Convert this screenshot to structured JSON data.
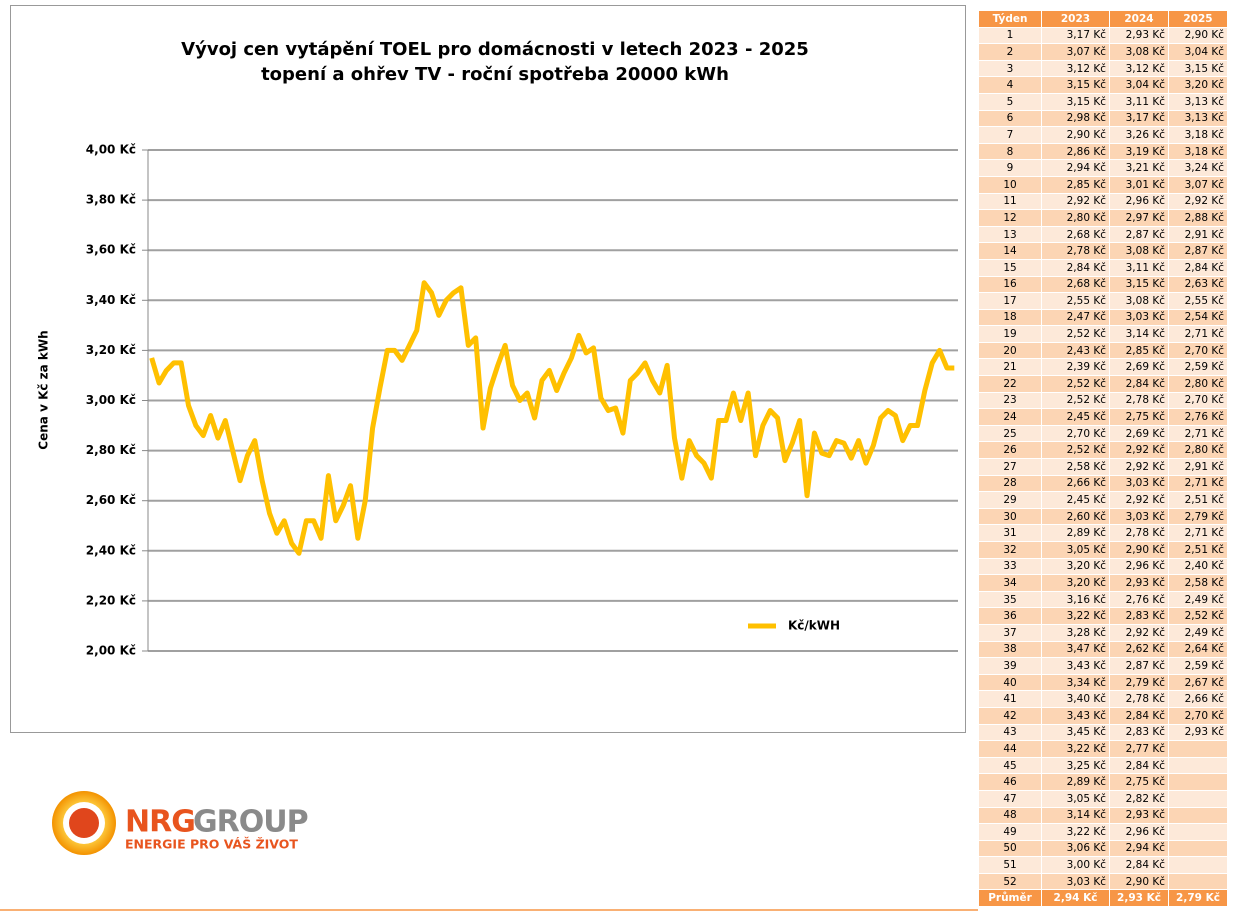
{
  "chart_data": {
    "type": "line",
    "title": "Vývoj cen vytápění TOEL pro domácnosti v letech 2023 - 2025",
    "subtitle": "topení a ohřev TV - roční spotřeba 20000 kWh",
    "y_label": "Cena v Kč za kWh",
    "ylim": [
      2.0,
      4.0
    ],
    "yticks": [
      {
        "value": 2.0,
        "label": "2,00 Kč"
      },
      {
        "value": 2.2,
        "label": "2,20 Kč"
      },
      {
        "value": 2.4,
        "label": "2,40 Kč"
      },
      {
        "value": 2.6,
        "label": "2,60 Kč"
      },
      {
        "value": 2.8,
        "label": "2,80 Kč"
      },
      {
        "value": 3.0,
        "label": "3,00 Kč"
      },
      {
        "value": 3.2,
        "label": "3,20 Kč"
      },
      {
        "value": 3.4,
        "label": "3,40 Kč"
      },
      {
        "value": 3.6,
        "label": "3,60 Kč"
      },
      {
        "value": 3.8,
        "label": "3,80 Kč"
      },
      {
        "value": 4.0,
        "label": "4,00 Kč"
      }
    ],
    "grid": true,
    "legend": "right",
    "series": [
      {
        "name": "Kč/kWH",
        "color": "#ffc000",
        "values": [
          3.17,
          3.07,
          3.12,
          3.15,
          3.15,
          2.98,
          2.9,
          2.86,
          2.94,
          2.85,
          2.92,
          2.8,
          2.68,
          2.78,
          2.84,
          2.68,
          2.55,
          2.47,
          2.52,
          2.43,
          2.39,
          2.52,
          2.52,
          2.45,
          2.7,
          2.52,
          2.58,
          2.66,
          2.45,
          2.6,
          2.89,
          3.05,
          3.2,
          3.2,
          3.16,
          3.22,
          3.28,
          3.47,
          3.43,
          3.34,
          3.4,
          3.43,
          3.45,
          3.22,
          3.25,
          2.89,
          3.05,
          3.14,
          3.22,
          3.06,
          3.0,
          3.03,
          2.93,
          3.08,
          3.12,
          3.04,
          3.11,
          3.17,
          3.26,
          3.19,
          3.21,
          3.01,
          2.96,
          2.97,
          2.87,
          3.08,
          3.11,
          3.15,
          3.08,
          3.03,
          3.14,
          2.85,
          2.69,
          2.84,
          2.78,
          2.75,
          2.69,
          2.92,
          2.92,
          3.03,
          2.92,
          3.03,
          2.78,
          2.9,
          2.96,
          2.93,
          2.76,
          2.83,
          2.92,
          2.62,
          2.87,
          2.79,
          2.78,
          2.84,
          2.83,
          2.77,
          2.84,
          2.75,
          2.82,
          2.93,
          2.96,
          2.94,
          2.84,
          2.9,
          2.9,
          3.04,
          3.15,
          3.2,
          3.13,
          3.13
        ]
      }
    ]
  },
  "table": {
    "header": [
      "Týden",
      "2023",
      "2024",
      "2025"
    ],
    "rows": [
      [
        1,
        "3,17 Kč",
        "2,93 Kč",
        "2,90 Kč"
      ],
      [
        2,
        "3,07 Kč",
        "3,08 Kč",
        "3,04 Kč"
      ],
      [
        3,
        "3,12 Kč",
        "3,12 Kč",
        "3,15 Kč"
      ],
      [
        4,
        "3,15 Kč",
        "3,04 Kč",
        "3,20 Kč"
      ],
      [
        5,
        "3,15 Kč",
        "3,11 Kč",
        "3,13 Kč"
      ],
      [
        6,
        "2,98 Kč",
        "3,17 Kč",
        "3,13 Kč"
      ],
      [
        7,
        "2,90 Kč",
        "3,26 Kč",
        "3,18 Kč"
      ],
      [
        8,
        "2,86 Kč",
        "3,19 Kč",
        "3,18 Kč"
      ],
      [
        9,
        "2,94 Kč",
        "3,21 Kč",
        "3,24 Kč"
      ],
      [
        10,
        "2,85 Kč",
        "3,01 Kč",
        "3,07 Kč"
      ],
      [
        11,
        "2,92 Kč",
        "2,96 Kč",
        "2,92 Kč"
      ],
      [
        12,
        "2,80 Kč",
        "2,97 Kč",
        "2,88 Kč"
      ],
      [
        13,
        "2,68 Kč",
        "2,87 Kč",
        "2,91 Kč"
      ],
      [
        14,
        "2,78 Kč",
        "3,08 Kč",
        "2,87 Kč"
      ],
      [
        15,
        "2,84 Kč",
        "3,11 Kč",
        "2,84 Kč"
      ],
      [
        16,
        "2,68 Kč",
        "3,15 Kč",
        "2,63 Kč"
      ],
      [
        17,
        "2,55 Kč",
        "3,08 Kč",
        "2,55 Kč"
      ],
      [
        18,
        "2,47 Kč",
        "3,03 Kč",
        "2,54 Kč"
      ],
      [
        19,
        "2,52 Kč",
        "3,14 Kč",
        "2,71 Kč"
      ],
      [
        20,
        "2,43 Kč",
        "2,85 Kč",
        "2,70 Kč"
      ],
      [
        21,
        "2,39 Kč",
        "2,69 Kč",
        "2,59 Kč"
      ],
      [
        22,
        "2,52 Kč",
        "2,84 Kč",
        "2,80 Kč"
      ],
      [
        23,
        "2,52 Kč",
        "2,78 Kč",
        "2,70 Kč"
      ],
      [
        24,
        "2,45 Kč",
        "2,75 Kč",
        "2,76 Kč"
      ],
      [
        25,
        "2,70 Kč",
        "2,69 Kč",
        "2,71 Kč"
      ],
      [
        26,
        "2,52 Kč",
        "2,92 Kč",
        "2,80 Kč"
      ],
      [
        27,
        "2,58 Kč",
        "2,92 Kč",
        "2,91 Kč"
      ],
      [
        28,
        "2,66 Kč",
        "3,03 Kč",
        "2,71 Kč"
      ],
      [
        29,
        "2,45 Kč",
        "2,92 Kč",
        "2,51 Kč"
      ],
      [
        30,
        "2,60 Kč",
        "3,03 Kč",
        "2,79 Kč"
      ],
      [
        31,
        "2,89 Kč",
        "2,78 Kč",
        "2,71 Kč"
      ],
      [
        32,
        "3,05 Kč",
        "2,90 Kč",
        "2,51 Kč"
      ],
      [
        33,
        "3,20 Kč",
        "2,96 Kč",
        "2,40 Kč"
      ],
      [
        34,
        "3,20 Kč",
        "2,93 Kč",
        "2,58 Kč"
      ],
      [
        35,
        "3,16 Kč",
        "2,76 Kč",
        "2,49 Kč"
      ],
      [
        36,
        "3,22 Kč",
        "2,83 Kč",
        "2,52 Kč"
      ],
      [
        37,
        "3,28 Kč",
        "2,92 Kč",
        "2,49 Kč"
      ],
      [
        38,
        "3,47 Kč",
        "2,62 Kč",
        "2,64 Kč"
      ],
      [
        39,
        "3,43 Kč",
        "2,87 Kč",
        "2,59 Kč"
      ],
      [
        40,
        "3,34 Kč",
        "2,79 Kč",
        "2,67 Kč"
      ],
      [
        41,
        "3,40 Kč",
        "2,78 Kč",
        "2,66 Kč"
      ],
      [
        42,
        "3,43 Kč",
        "2,84 Kč",
        "2,70 Kč"
      ],
      [
        43,
        "3,45 Kč",
        "2,83 Kč",
        "2,93 Kč"
      ],
      [
        44,
        "3,22 Kč",
        "2,77 Kč",
        null
      ],
      [
        45,
        "3,25 Kč",
        "2,84 Kč",
        null
      ],
      [
        46,
        "2,89 Kč",
        "2,75 Kč",
        null
      ],
      [
        47,
        "3,05 Kč",
        "2,82 Kč",
        null
      ],
      [
        48,
        "3,14 Kč",
        "2,93 Kč",
        null
      ],
      [
        49,
        "3,22 Kč",
        "2,96 Kč",
        null
      ],
      [
        50,
        "3,06 Kč",
        "2,94 Kč",
        null
      ],
      [
        51,
        "3,00 Kč",
        "2,84 Kč",
        null
      ],
      [
        52,
        "3,03 Kč",
        "2,90 Kč",
        null
      ]
    ],
    "footer": [
      "Průměr",
      "2,94 Kč",
      "2,93 Kč",
      "2,79 Kč"
    ]
  },
  "logo": {
    "brand": "NRG",
    "group": "GROUP",
    "tagline": "ENERGIE PRO VÁŠ ŽIVOT"
  }
}
